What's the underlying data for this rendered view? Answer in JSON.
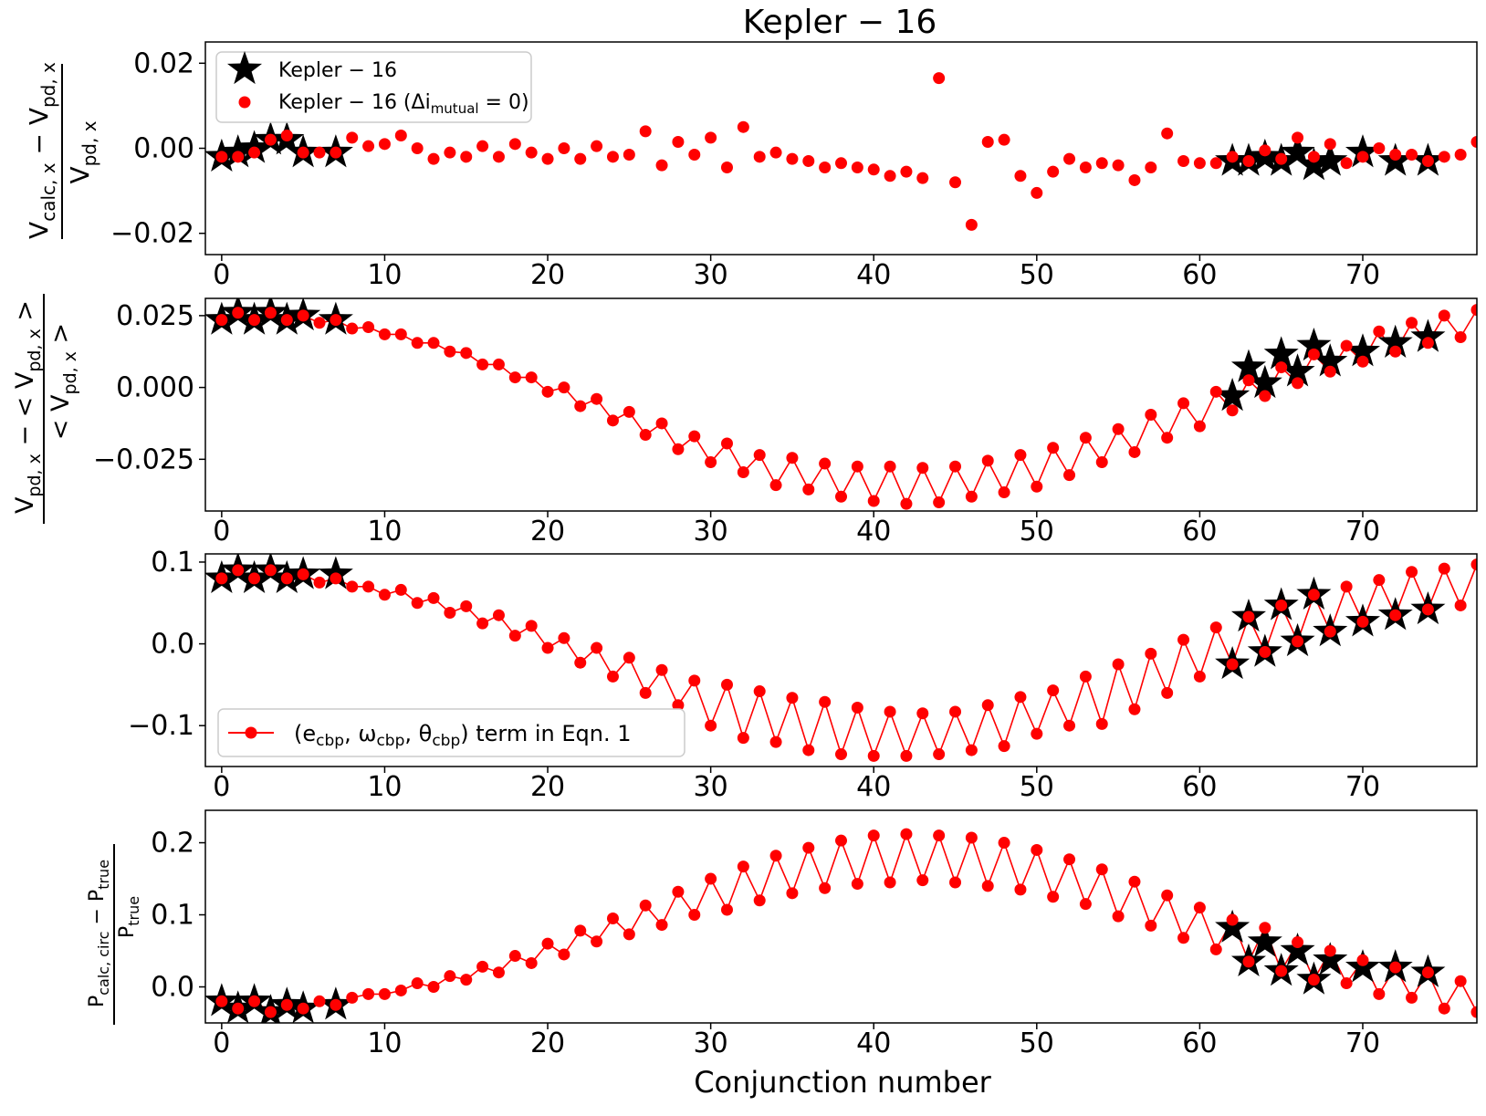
{
  "figure_title": "Kepler − 16",
  "xlabel": "Conjunction number",
  "colors": {
    "red": "#ff0000",
    "black": "#000000"
  },
  "chart_data": [
    {
      "type": "scatter",
      "xlim": [
        -1,
        77
      ],
      "ylim": [
        -0.025,
        0.025
      ],
      "yticks": [
        0.02,
        0.0,
        -0.02
      ],
      "ytick_labels": [
        "0.02",
        "0.00",
        "−0.02"
      ],
      "xticks": [
        0,
        10,
        20,
        30,
        40,
        50,
        60,
        70
      ],
      "xtick_labels": [
        "0",
        "10",
        "20",
        "30",
        "40",
        "50",
        "60",
        "70"
      ],
      "ylabel": {
        "num_main": "V",
        "num_sub": "calc, x",
        "num_mid": " − ",
        "num_main2": "V",
        "num_sub2": "pd, x",
        "den_main": "V",
        "den_sub": "pd, x"
      },
      "legend": {
        "star_label": "Kepler − 16",
        "dot_label_prefix": "Kepler − 16 (Δi",
        "dot_label_sub": "mutual",
        "dot_label_suffix": " = 0)"
      },
      "series": [
        {
          "name": "Kepler − 16 (Δi_mutual = 0)",
          "marker": "circle",
          "color": "#ff0000",
          "line": false,
          "x": [
            0,
            1,
            2,
            3,
            4,
            5,
            6,
            7,
            8,
            9,
            10,
            11,
            12,
            13,
            14,
            15,
            16,
            17,
            18,
            19,
            20,
            21,
            22,
            23,
            24,
            25,
            26,
            27,
            28,
            29,
            30,
            31,
            32,
            33,
            34,
            35,
            36,
            37,
            38,
            39,
            40,
            41,
            42,
            43,
            44,
            45,
            46,
            47,
            48,
            49,
            50,
            51,
            52,
            53,
            54,
            55,
            56,
            57,
            58,
            59,
            60,
            61,
            62,
            63,
            64,
            65,
            66,
            67,
            68,
            69,
            70,
            71,
            72,
            73,
            74,
            75,
            76,
            77
          ],
          "y": [
            -0.002,
            -0.002,
            -0.001,
            0.002,
            0.003,
            -0.001,
            -0.001,
            -0.001,
            0.0025,
            0.0005,
            0.001,
            0.003,
            0.0,
            -0.0025,
            -0.001,
            -0.002,
            0.0005,
            -0.002,
            0.001,
            -0.001,
            -0.0025,
            0.0,
            -0.0025,
            0.0005,
            -0.002,
            -0.0015,
            0.004,
            -0.004,
            0.0015,
            -0.0015,
            0.0025,
            -0.0045,
            0.005,
            -0.002,
            -0.001,
            -0.0025,
            -0.003,
            -0.0045,
            -0.0035,
            -0.0045,
            -0.005,
            -0.0065,
            -0.0055,
            -0.007,
            0.0165,
            -0.008,
            -0.018,
            0.0015,
            0.002,
            -0.0065,
            -0.0105,
            -0.0055,
            -0.0025,
            -0.0045,
            -0.0035,
            -0.004,
            -0.0075,
            -0.0045,
            0.0035,
            -0.003,
            -0.0035,
            -0.0035,
            -0.002,
            -0.003,
            -0.0005,
            -0.0025,
            0.0025,
            -0.002,
            0.001,
            -0.0035,
            -0.002,
            0.0,
            -0.0015,
            -0.0015,
            -0.003,
            -0.002,
            -0.0015,
            0.0015
          ]
        },
        {
          "name": "Kepler − 16",
          "marker": "star",
          "color": "#000000",
          "line": false,
          "x": [
            0,
            1,
            2,
            3,
            4,
            5,
            7,
            62,
            63,
            64,
            65,
            66,
            67,
            68,
            70,
            72,
            74
          ],
          "y": [
            -0.002,
            -0.001,
            0.0,
            0.002,
            0.002,
            -0.001,
            -0.001,
            -0.003,
            -0.003,
            -0.002,
            -0.003,
            -0.001,
            -0.004,
            -0.003,
            -0.001,
            -0.003,
            -0.003
          ]
        }
      ]
    },
    {
      "type": "line",
      "xlim": [
        -1,
        77
      ],
      "ylim": [
        -0.043,
        0.031
      ],
      "yticks": [
        0.025,
        0.0,
        -0.025
      ],
      "ytick_labels": [
        "0.025",
        "0.000",
        "−0.025"
      ],
      "xticks": [
        0,
        10,
        20,
        30,
        40,
        50,
        60,
        70
      ],
      "xtick_labels": [
        "0",
        "10",
        "20",
        "30",
        "40",
        "50",
        "60",
        "70"
      ],
      "ylabel": {
        "num_main": "V",
        "num_sub": "pd, x",
        "num_mid": " − < ",
        "num_main2": "V",
        "num_sub2": "pd, x",
        "num_end": " >",
        "den_pre": "< ",
        "den_main": "V",
        "den_sub": "pd, x",
        "den_end": " >"
      },
      "series": [
        {
          "name": "red",
          "marker": "circle",
          "color": "#ff0000",
          "line": true,
          "x": [
            0,
            1,
            2,
            3,
            4,
            5,
            6,
            7,
            8,
            9,
            10,
            11,
            12,
            13,
            14,
            15,
            16,
            17,
            18,
            19,
            20,
            21,
            22,
            23,
            24,
            25,
            26,
            27,
            28,
            29,
            30,
            31,
            32,
            33,
            34,
            35,
            36,
            37,
            38,
            39,
            40,
            41,
            42,
            43,
            44,
            45,
            46,
            47,
            48,
            49,
            50,
            51,
            52,
            53,
            54,
            55,
            56,
            57,
            58,
            59,
            60,
            61,
            62,
            63,
            64,
            65,
            66,
            67,
            68,
            69,
            70,
            71,
            72,
            73,
            74,
            75,
            76,
            77
          ],
          "y": [
            0.0235,
            0.026,
            0.0235,
            0.026,
            0.0235,
            0.025,
            0.0225,
            0.0235,
            0.0205,
            0.021,
            0.0185,
            0.0185,
            0.0155,
            0.0155,
            0.0125,
            0.012,
            0.008,
            0.008,
            0.0035,
            0.0035,
            -0.0015,
            0.0,
            -0.0065,
            -0.004,
            -0.0115,
            -0.0085,
            -0.0165,
            -0.0125,
            -0.0215,
            -0.017,
            -0.026,
            -0.0195,
            -0.0295,
            -0.0235,
            -0.034,
            -0.0245,
            -0.0355,
            -0.0265,
            -0.038,
            -0.0275,
            -0.0395,
            -0.0275,
            -0.0405,
            -0.028,
            -0.04,
            -0.0275,
            -0.038,
            -0.0255,
            -0.0365,
            -0.0235,
            -0.0345,
            -0.021,
            -0.0305,
            -0.0175,
            -0.026,
            -0.0145,
            -0.0225,
            -0.0095,
            -0.0175,
            -0.0055,
            -0.0135,
            -0.0015,
            -0.008,
            0.0025,
            -0.003,
            0.007,
            0.0015,
            0.0115,
            0.0055,
            0.0145,
            0.009,
            0.0195,
            0.0125,
            0.0225,
            0.0155,
            0.025,
            0.0175,
            0.027
          ]
        },
        {
          "name": "Kepler − 16",
          "marker": "star",
          "color": "#000000",
          "line": false,
          "x": [
            0,
            1,
            2,
            3,
            4,
            5,
            7,
            62,
            63,
            64,
            65,
            66,
            67,
            68,
            70,
            72,
            74
          ],
          "y": [
            0.0235,
            0.026,
            0.0235,
            0.026,
            0.0235,
            0.025,
            0.0235,
            -0.003,
            0.007,
            0.0015,
            0.0115,
            0.0055,
            0.0145,
            0.009,
            0.0125,
            0.0155,
            0.0175
          ]
        }
      ]
    },
    {
      "type": "line",
      "xlim": [
        -1,
        77
      ],
      "ylim": [
        -0.15,
        0.11
      ],
      "yticks": [
        0.1,
        0.0,
        -0.1
      ],
      "ytick_labels": [
        "0.1",
        "0.0",
        "−0.1"
      ],
      "xticks": [
        0,
        10,
        20,
        30,
        40,
        50,
        60,
        70
      ],
      "xtick_labels": [
        "0",
        "10",
        "20",
        "30",
        "40",
        "50",
        "60",
        "70"
      ],
      "legend": {
        "pre": "(e",
        "sub1": "cbp",
        "mid1": ",  ω",
        "sub2": "cbp",
        "mid2": ",  θ",
        "sub3": "cbp",
        "post": ") term in Eqn.  1"
      },
      "series": [
        {
          "name": "(e_cbp, ω_cbp, θ_cbp) term in Eqn. 1",
          "marker": "circle",
          "color": "#ff0000",
          "line": true,
          "x": [
            0,
            1,
            2,
            3,
            4,
            5,
            6,
            7,
            8,
            9,
            10,
            11,
            12,
            13,
            14,
            15,
            16,
            17,
            18,
            19,
            20,
            21,
            22,
            23,
            24,
            25,
            26,
            27,
            28,
            29,
            30,
            31,
            32,
            33,
            34,
            35,
            36,
            37,
            38,
            39,
            40,
            41,
            42,
            43,
            44,
            45,
            46,
            47,
            48,
            49,
            50,
            51,
            52,
            53,
            54,
            55,
            56,
            57,
            58,
            59,
            60,
            61,
            62,
            63,
            64,
            65,
            66,
            67,
            68,
            69,
            70,
            71,
            72,
            73,
            74,
            75,
            76,
            77
          ],
          "y": [
            0.08,
            0.09,
            0.08,
            0.09,
            0.08,
            0.085,
            0.075,
            0.08,
            0.07,
            0.07,
            0.06,
            0.066,
            0.05,
            0.056,
            0.038,
            0.046,
            0.025,
            0.035,
            0.01,
            0.022,
            -0.005,
            0.007,
            -0.023,
            -0.005,
            -0.04,
            -0.017,
            -0.06,
            -0.032,
            -0.075,
            -0.045,
            -0.1,
            -0.05,
            -0.115,
            -0.058,
            -0.12,
            -0.066,
            -0.13,
            -0.071,
            -0.135,
            -0.078,
            -0.137,
            -0.083,
            -0.137,
            -0.085,
            -0.135,
            -0.083,
            -0.13,
            -0.075,
            -0.125,
            -0.065,
            -0.11,
            -0.057,
            -0.1,
            -0.04,
            -0.098,
            -0.025,
            -0.08,
            -0.012,
            -0.06,
            0.005,
            -0.04,
            0.02,
            -0.025,
            0.033,
            -0.01,
            0.047,
            0.003,
            0.06,
            0.015,
            0.07,
            0.027,
            0.078,
            0.035,
            0.088,
            0.042,
            0.092,
            0.047,
            0.097
          ]
        },
        {
          "name": "Kepler − 16",
          "marker": "star",
          "color": "#000000",
          "line": false,
          "x": [
            0,
            1,
            2,
            3,
            4,
            5,
            7,
            62,
            63,
            64,
            65,
            66,
            67,
            68,
            70,
            72,
            74
          ],
          "y": [
            0.08,
            0.09,
            0.08,
            0.09,
            0.08,
            0.085,
            0.085,
            -0.025,
            0.033,
            -0.01,
            0.047,
            0.003,
            0.06,
            0.015,
            0.027,
            0.035,
            0.042
          ]
        }
      ]
    },
    {
      "type": "line",
      "xlim": [
        -1,
        77
      ],
      "ylim": [
        -0.05,
        0.245
      ],
      "yticks": [
        0.2,
        0.1,
        0.0
      ],
      "ytick_labels": [
        "0.2",
        "0.1",
        "0.0"
      ],
      "xticks": [
        0,
        10,
        20,
        30,
        40,
        50,
        60,
        70
      ],
      "xtick_labels": [
        "0",
        "10",
        "20",
        "30",
        "40",
        "50",
        "60",
        "70"
      ],
      "ylabel": {
        "num_main": "P",
        "num_sub": "calc, circ",
        "num_mid": " − ",
        "num_main2": "P",
        "num_sub2": "true",
        "den_main": "P",
        "den_sub": "true"
      },
      "series": [
        {
          "name": "red",
          "marker": "circle",
          "color": "#ff0000",
          "line": true,
          "x": [
            0,
            1,
            2,
            3,
            4,
            5,
            6,
            7,
            8,
            9,
            10,
            11,
            12,
            13,
            14,
            15,
            16,
            17,
            18,
            19,
            20,
            21,
            22,
            23,
            24,
            25,
            26,
            27,
            28,
            29,
            30,
            31,
            32,
            33,
            34,
            35,
            36,
            37,
            38,
            39,
            40,
            41,
            42,
            43,
            44,
            45,
            46,
            47,
            48,
            49,
            50,
            51,
            52,
            53,
            54,
            55,
            56,
            57,
            58,
            59,
            60,
            61,
            62,
            63,
            64,
            65,
            66,
            67,
            68,
            69,
            70,
            71,
            72,
            73,
            74,
            75,
            76,
            77
          ],
          "y": [
            -0.02,
            -0.03,
            -0.02,
            -0.035,
            -0.025,
            -0.03,
            -0.02,
            -0.025,
            -0.015,
            -0.01,
            -0.01,
            -0.005,
            0.005,
            0.0,
            0.015,
            0.01,
            0.028,
            0.02,
            0.043,
            0.033,
            0.06,
            0.045,
            0.078,
            0.063,
            0.095,
            0.073,
            0.113,
            0.086,
            0.132,
            0.1,
            0.15,
            0.107,
            0.167,
            0.12,
            0.182,
            0.13,
            0.193,
            0.137,
            0.203,
            0.143,
            0.21,
            0.145,
            0.212,
            0.148,
            0.21,
            0.145,
            0.207,
            0.14,
            0.2,
            0.135,
            0.19,
            0.125,
            0.177,
            0.115,
            0.163,
            0.098,
            0.146,
            0.085,
            0.127,
            0.068,
            0.11,
            0.052,
            0.093,
            0.035,
            0.082,
            0.022,
            0.062,
            0.01,
            0.05,
            0.005,
            0.037,
            -0.01,
            0.027,
            -0.015,
            0.02,
            -0.03,
            0.008,
            -0.035
          ]
        },
        {
          "name": "Kepler − 16",
          "marker": "star",
          "color": "#000000",
          "line": false,
          "x": [
            0,
            1,
            2,
            3,
            4,
            5,
            7,
            62,
            63,
            64,
            65,
            66,
            67,
            68,
            70,
            72,
            74
          ],
          "y": [
            -0.02,
            -0.03,
            -0.02,
            -0.035,
            -0.025,
            -0.03,
            -0.025,
            0.082,
            0.035,
            0.062,
            0.022,
            0.05,
            0.01,
            0.037,
            0.027,
            0.027,
            0.02
          ]
        }
      ]
    }
  ]
}
